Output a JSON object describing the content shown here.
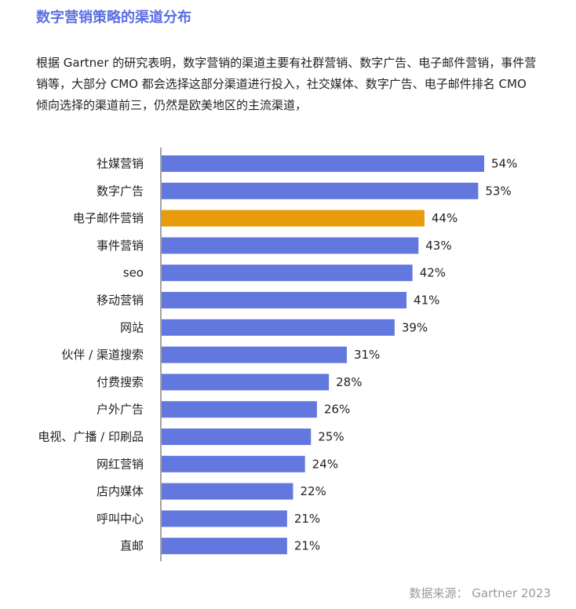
{
  "heading": "数字营销策略的渠道分布",
  "intro_lines": [
    "根据 Gartner 的研究表明，数字营销的渠道主要有社群营销、数字广告、电子邮件营销，事件营",
    "销等，大部分 CMO 都会选择这部分渠道进行投入，社交媒体、数字广告、电子邮件排名 CMO",
    "倾向选择的渠道前三，仍然是欧美地区的主流渠道，"
  ],
  "source": "数据来源： Gartner 2023",
  "chart_data": {
    "type": "bar",
    "orientation": "horizontal",
    "categories": [
      "社媒营销",
      "数字广告",
      "电子邮件营销",
      "事件营销",
      "seo",
      "移动营销",
      "网站",
      "伙伴 / 渠道搜索",
      "付费搜索",
      "户外广告",
      "电视、广播 / 印刷品",
      "网红营销",
      "店内媒体",
      "呼叫中心",
      "直邮"
    ],
    "values": [
      54,
      53,
      44,
      43,
      42,
      41,
      39,
      31,
      28,
      26,
      25,
      24,
      22,
      21,
      21
    ],
    "value_labels": [
      "54%",
      "53%",
      "44%",
      "43%",
      "42%",
      "41%",
      "39%",
      "31%",
      "28%",
      "26%",
      "25%",
      "24%",
      "22%",
      "21%",
      "21%"
    ],
    "unit": "%",
    "highlight_index": 2,
    "colors": {
      "default": "#6378de",
      "highlight": "#e89c0c"
    },
    "xlim": [
      0,
      54
    ],
    "grid": false,
    "legend": "none"
  }
}
